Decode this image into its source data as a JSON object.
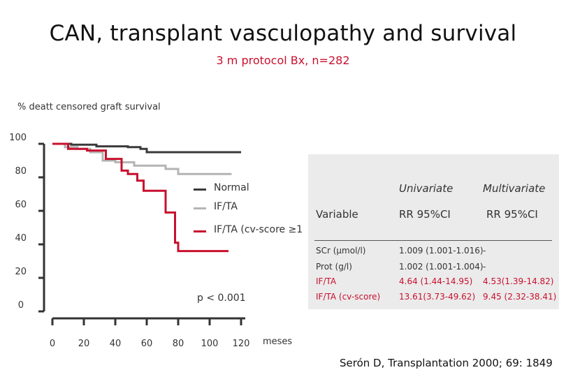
{
  "title": "CAN, transplant vasculopathy and survival",
  "subtitle": "3 m protocol Bx, n=282",
  "colors": {
    "normal": "#3a3a3a",
    "if_ta": "#b4b4b4",
    "if_ta_cv": "#c8102e",
    "panel": "#ebebeb",
    "accent": "#c8102e"
  },
  "chart_data": {
    "type": "line",
    "title": "",
    "ylabel": "% deatt censored graft survival",
    "xlabel": "meses",
    "xlim": [
      0,
      120
    ],
    "ylim": [
      0,
      100
    ],
    "x_ticks": [
      0,
      20,
      40,
      60,
      80,
      100,
      120
    ],
    "y_ticks": [
      0,
      20,
      40,
      60,
      80,
      100
    ],
    "legend_position": "center-right",
    "series": [
      {
        "name": "Normal",
        "color": "#3a3a3a",
        "points": [
          [
            0,
            100
          ],
          [
            12,
            100
          ],
          [
            12,
            99.5
          ],
          [
            28,
            99.5
          ],
          [
            28,
            98.5
          ],
          [
            48,
            98.5
          ],
          [
            48,
            98
          ],
          [
            56,
            98
          ],
          [
            56,
            97
          ],
          [
            60,
            97
          ],
          [
            60,
            95
          ],
          [
            120,
            95
          ]
        ]
      },
      {
        "name": "IF/TA",
        "color": "#b4b4b4",
        "points": [
          [
            0,
            100
          ],
          [
            8,
            100
          ],
          [
            8,
            98
          ],
          [
            16,
            98
          ],
          [
            16,
            97
          ],
          [
            24,
            97
          ],
          [
            24,
            95
          ],
          [
            32,
            95
          ],
          [
            32,
            90
          ],
          [
            40,
            90
          ],
          [
            40,
            89
          ],
          [
            52,
            89
          ],
          [
            52,
            87
          ],
          [
            72,
            87
          ],
          [
            72,
            85
          ],
          [
            80,
            85
          ],
          [
            80,
            82
          ],
          [
            114,
            82
          ]
        ]
      },
      {
        "name": "IF/TA (cv-score ≥1",
        "color": "#c8102e",
        "points": [
          [
            0,
            100
          ],
          [
            10,
            100
          ],
          [
            10,
            97
          ],
          [
            22,
            97
          ],
          [
            22,
            96
          ],
          [
            34,
            96
          ],
          [
            34,
            91
          ],
          [
            44,
            91
          ],
          [
            44,
            84
          ],
          [
            48,
            84
          ],
          [
            48,
            82
          ],
          [
            54,
            82
          ],
          [
            54,
            78
          ],
          [
            58,
            78
          ],
          [
            58,
            72
          ],
          [
            72,
            72
          ],
          [
            72,
            59
          ],
          [
            78,
            59
          ],
          [
            78,
            41
          ],
          [
            80,
            41
          ],
          [
            80,
            36
          ],
          [
            112,
            36
          ]
        ]
      }
    ],
    "annotations": [
      "p < 0.001"
    ]
  },
  "table": {
    "col_groups": [
      "Univariate",
      "Multivariate"
    ],
    "headers": [
      "Variable",
      "RR 95%CI",
      "RR 95%CI"
    ],
    "rows": [
      {
        "variable": "SCr (µmol/l)",
        "uni": "1.009 (1.001-1.016)",
        "multi": "-",
        "highlight": false
      },
      {
        "variable": "Prot (g/l)",
        "uni": "1.002 (1.001-1.004)",
        "multi": "-",
        "highlight": false
      },
      {
        "variable": "IF/TA",
        "uni": "4.64 (1.44-14.95)",
        "multi": "4.53(1.39-14.82)",
        "highlight": true
      },
      {
        "variable": "IF/TA (cv-score)",
        "uni": "13.61(3.73-49.62)",
        "multi": "9.45 (2.32-38.41)",
        "highlight": true
      }
    ]
  },
  "citation": "Serón D, Transplantation 2000; 69: 1849"
}
